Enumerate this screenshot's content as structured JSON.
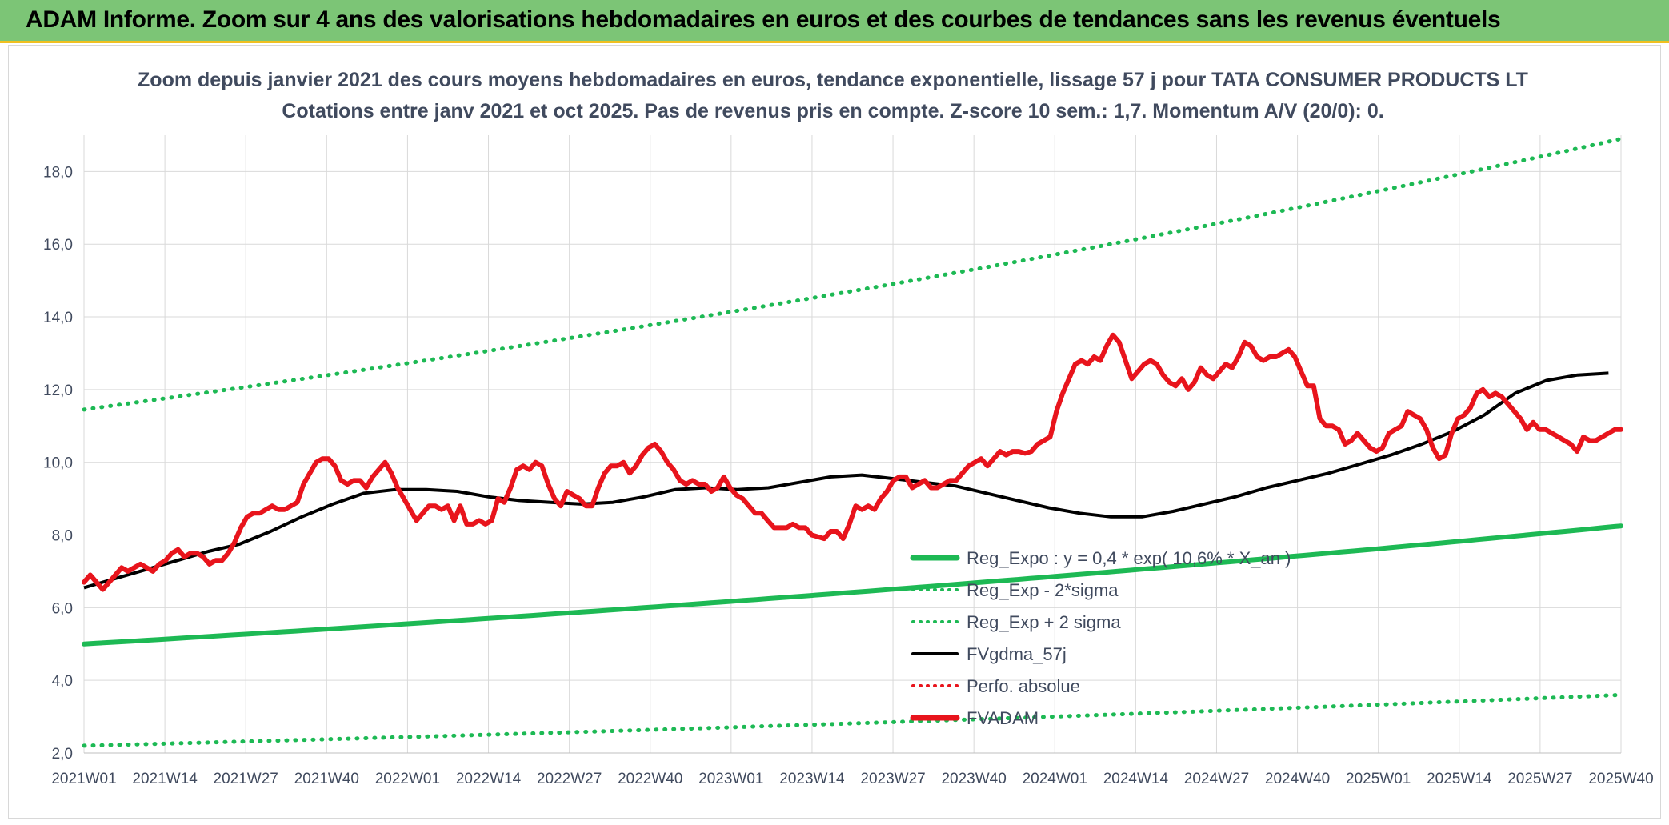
{
  "banner": {
    "title": "ADAM Informe. Zoom sur 4 ans des valorisations hebdomadaires en euros et des courbes de tendances sans les revenus éventuels"
  },
  "chart_data": {
    "type": "line",
    "title_line1": "Zoom depuis janvier 2021 des cours moyens hebdomadaires en euros, tendance exponentielle, lissage 57 j pour TATA CONSUMER PRODUCTS LT",
    "title_line2": "Cotations entre janv 2021 et oct 2025. Pas de revenus pris en compte. Z-score 10 sem.: 1,7. Momentum A/V (20/0): 0.",
    "ylim": [
      2,
      19
    ],
    "yticks": [
      2,
      4,
      6,
      8,
      10,
      12,
      14,
      16,
      18
    ],
    "ytick_labels": [
      "2,0",
      "4,0",
      "6,0",
      "8,0",
      "10,0",
      "12,0",
      "14,0",
      "16,0",
      "18,0"
    ],
    "x_count": 248,
    "x_tick_labels": [
      "2021W01",
      "2021W14",
      "2021W27",
      "2021W40",
      "2022W01",
      "2022W14",
      "2022W27",
      "2022W40",
      "2023W01",
      "2023W14",
      "2023W27",
      "2023W40",
      "2024W01",
      "2024W14",
      "2024W27",
      "2024W40",
      "2025W01",
      "2025W14",
      "2025W27",
      "2025W40"
    ],
    "grid": true,
    "legend_position": "bottom-right",
    "legend": [
      {
        "label": "Reg_Expo : y = 0,4 * exp( 10,6% *  X_an )",
        "color": "#1db954",
        "style": "solid-thick"
      },
      {
        "label": "Reg_Exp - 2*sigma",
        "color": "#1db954",
        "style": "dotted"
      },
      {
        "label": "Reg_Exp + 2 sigma",
        "color": "#1db954",
        "style": "dotted"
      },
      {
        "label": "FVgdma_57j",
        "color": "#000000",
        "style": "solid"
      },
      {
        "label": "Perfo. absolue",
        "color": "#e8141c",
        "style": "dotted"
      },
      {
        "label": "FVADAM",
        "color": "#e8141c",
        "style": "solid-thick"
      }
    ],
    "series": [
      {
        "name": "Reg_Expo",
        "color": "#1db954",
        "start": 5.0,
        "end": 8.25
      },
      {
        "name": "Reg_Exp - 2*sigma",
        "color": "#1db954",
        "start": 2.2,
        "end": 3.6
      },
      {
        "name": "Reg_Exp + 2 sigma",
        "color": "#1db954",
        "start": 11.45,
        "end": 18.9
      },
      {
        "name": "FVgdma_57j",
        "color": "#000000",
        "points": [
          [
            0,
            6.55
          ],
          [
            5,
            6.8
          ],
          [
            10,
            7.05
          ],
          [
            15,
            7.3
          ],
          [
            20,
            7.55
          ],
          [
            25,
            7.75
          ],
          [
            30,
            8.1
          ],
          [
            35,
            8.5
          ],
          [
            40,
            8.85
          ],
          [
            45,
            9.15
          ],
          [
            50,
            9.25
          ],
          [
            55,
            9.25
          ],
          [
            60,
            9.2
          ],
          [
            65,
            9.05
          ],
          [
            70,
            8.95
          ],
          [
            75,
            8.9
          ],
          [
            80,
            8.85
          ],
          [
            85,
            8.9
          ],
          [
            90,
            9.05
          ],
          [
            95,
            9.25
          ],
          [
            100,
            9.3
          ],
          [
            105,
            9.25
          ],
          [
            110,
            9.3
          ],
          [
            115,
            9.45
          ],
          [
            120,
            9.6
          ],
          [
            125,
            9.65
          ],
          [
            130,
            9.55
          ],
          [
            135,
            9.45
          ],
          [
            140,
            9.35
          ],
          [
            145,
            9.15
          ],
          [
            150,
            8.95
          ],
          [
            155,
            8.75
          ],
          [
            160,
            8.6
          ],
          [
            165,
            8.5
          ],
          [
            170,
            8.5
          ],
          [
            175,
            8.65
          ],
          [
            180,
            8.85
          ],
          [
            185,
            9.05
          ],
          [
            190,
            9.3
          ],
          [
            195,
            9.5
          ],
          [
            200,
            9.7
          ],
          [
            205,
            9.95
          ],
          [
            210,
            10.2
          ],
          [
            215,
            10.5
          ],
          [
            220,
            10.85
          ],
          [
            225,
            11.3
          ],
          [
            230,
            11.9
          ],
          [
            235,
            12.25
          ],
          [
            240,
            12.4
          ],
          [
            245,
            12.45
          ]
        ]
      },
      {
        "name": "FVADAM",
        "color": "#e8141c",
        "values": [
          6.7,
          6.9,
          6.7,
          6.5,
          6.7,
          6.9,
          7.1,
          7.0,
          7.1,
          7.2,
          7.1,
          7.0,
          7.2,
          7.3,
          7.5,
          7.6,
          7.4,
          7.5,
          7.5,
          7.4,
          7.2,
          7.3,
          7.3,
          7.5,
          7.8,
          8.2,
          8.5,
          8.6,
          8.6,
          8.7,
          8.8,
          8.7,
          8.7,
          8.8,
          8.9,
          9.4,
          9.7,
          10.0,
          10.1,
          10.1,
          9.9,
          9.5,
          9.4,
          9.5,
          9.5,
          9.3,
          9.6,
          9.8,
          10.0,
          9.7,
          9.3,
          9.0,
          8.7,
          8.4,
          8.6,
          8.8,
          8.8,
          8.7,
          8.8,
          8.4,
          8.8,
          8.3,
          8.3,
          8.4,
          8.3,
          8.4,
          9.0,
          8.9,
          9.3,
          9.8,
          9.9,
          9.8,
          10.0,
          9.9,
          9.4,
          9.0,
          8.8,
          9.2,
          9.1,
          9.0,
          8.8,
          8.8,
          9.3,
          9.7,
          9.9,
          9.9,
          10.0,
          9.7,
          9.9,
          10.2,
          10.4,
          10.5,
          10.3,
          10.0,
          9.8,
          9.5,
          9.4,
          9.5,
          9.4,
          9.4,
          9.2,
          9.3,
          9.6,
          9.3,
          9.1,
          9.0,
          8.8,
          8.6,
          8.6,
          8.4,
          8.2,
          8.2,
          8.2,
          8.3,
          8.2,
          8.2,
          8.0,
          7.95,
          7.9,
          8.1,
          8.1,
          7.9,
          8.3,
          8.8,
          8.7,
          8.8,
          8.7,
          9.0,
          9.2,
          9.5,
          9.6,
          9.6,
          9.3,
          9.4,
          9.5,
          9.3,
          9.3,
          9.4,
          9.5,
          9.5,
          9.7,
          9.9,
          10.0,
          10.1,
          9.9,
          10.1,
          10.3,
          10.2,
          10.3,
          10.3,
          10.25,
          10.3,
          10.5,
          10.6,
          10.7,
          11.4,
          11.9,
          12.3,
          12.7,
          12.8,
          12.7,
          12.9,
          12.8,
          13.2,
          13.5,
          13.3,
          12.8,
          12.3,
          12.5,
          12.7,
          12.8,
          12.7,
          12.4,
          12.2,
          12.1,
          12.3,
          12.0,
          12.2,
          12.6,
          12.4,
          12.3,
          12.5,
          12.7,
          12.6,
          12.9,
          13.3,
          13.2,
          12.9,
          12.8,
          12.9,
          12.9,
          13.0,
          13.1,
          12.9,
          12.5,
          12.1,
          12.1,
          11.2,
          11.0,
          11.0,
          10.9,
          10.5,
          10.6,
          10.8,
          10.6,
          10.4,
          10.3,
          10.4,
          10.8,
          10.9,
          11.0,
          11.4,
          11.3,
          11.2,
          10.9,
          10.4,
          10.1,
          10.2,
          10.8,
          11.2,
          11.3,
          11.5,
          11.9,
          12.0,
          11.8,
          11.9,
          11.8,
          11.6,
          11.4,
          11.2,
          10.9,
          11.1,
          10.9,
          10.9,
          10.8,
          10.7,
          10.6,
          10.5,
          10.3,
          10.7,
          10.6,
          10.6,
          10.7,
          10.8,
          10.9,
          10.9
        ]
      }
    ]
  }
}
